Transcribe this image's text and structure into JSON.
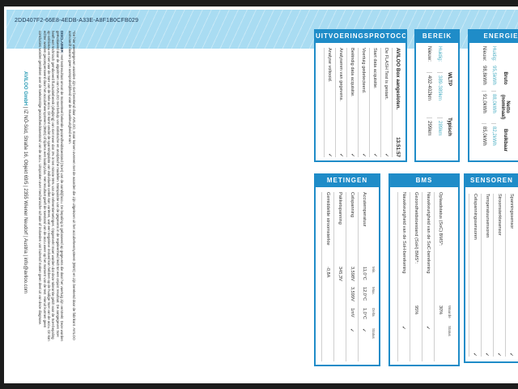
{
  "document_id": "2DD407F2-66E8-4EDB-A33E-A8F1B0CFB029",
  "footnote": "*De hier weergegeven waarden zijn niet berekend door AVILOO, maar komen overeen met de waarden die zijn uitgelezen uit het accubeheersysteem (BMS) en zijn berekend door de fabrikant. AVILOO aanvaardt daarom geen aansprakelijkheid voor de nauwkeurigheid ervan.",
  "disclaimer_label": "DISCLAIMER:",
  "disclaimer": "Het testresultaat omvat de momenteel bekende gezondheidstoestand (SoH) van de aandrijfaccu. De bepaling is gebaseerd op gegevens die door het voertuig zijn verstrekt. Deze worden geëvalueerd door de algoritmen van AVILOO met behulp van statistische en analytische modellen. Manipulatie van de gegevens in de regeleenheid leidt tot een onjuist resultaat. De aangegeven SoH heeft een technisch geïndiceerd fluctuatiebereik (afwijking) van niet meer dan 3% in ten minste 95% van de referentiemetingen. Opgemerkt moet worden dat deze tolerantie geldt voor de SoH-bepaling op celniveau en niet voor de SoH van de hele accu. Dit komt omdat de spanningsdata van individuele cellen kan variëren, wat een negatieve invloed kan hebben op de huidige SoH van de accu. Dit kan echter worden gecompenseerd door het accubeheersysteem (BMS) of tijdens een laadcyclus. Het resultaat geeft de toestand van de accu weer op het moment van de test. Hieruit kunnen geen conclusies worden getrokken over de toekomstige gezondheidstoestand van de accu. Uitspraken over mechanische schade of invloeden van buitenaf maken geen deel uit van deze diagnose.",
  "footer": {
    "company": "AVILOO GmbH",
    "address": " | IZ NÖ-Süd, Straße 16, Objekt 69/5 | 2355 Wiener Neudorf | Austria | info@aviloo.com"
  },
  "colors": {
    "accent": "#1f8cc8",
    "band": "#a9dcf2",
    "teal": "#4fb0c4"
  },
  "protocol": {
    "title": "UITVOERINGSPROTOCOL",
    "first": {
      "text": "AVILOO Box aangesloten.",
      "time": "13:51:57"
    },
    "rows": [
      "De FLASH Test is gestart.",
      "Start data acquisitie.",
      "Voertuig gedetecteerd.",
      "Beëindig data acquisitie.",
      "Analyseren van gegevens.",
      "Analyse voltooid."
    ]
  },
  "bereik": {
    "title": "BEREIK",
    "headers": [
      "WLTP",
      "Typisch"
    ],
    "rows": [
      {
        "label": "Huidig:",
        "values": [
          "389-389km",
          "289km"
        ]
      },
      {
        "label": "Nieuw:",
        "values": [
          "402-402km",
          "299km"
        ]
      }
    ]
  },
  "energie": {
    "title": "ENERGIE",
    "headers": [
      "Bruto",
      "Netto (nominaal)",
      "Bruikbaar"
    ],
    "rows": [
      {
        "label": "Huidig:",
        "values": [
          "95,5kWh",
          "88,0kWh",
          "82,2kWh"
        ]
      },
      {
        "label": "Nieuw:",
        "values": [
          "98,8kWh",
          "91,0kWh",
          "85,0kWh"
        ]
      }
    ]
  },
  "metingen": {
    "title": "METINGEN",
    "headers": [
      "Min.",
      "Max.",
      "Delta",
      "Status"
    ],
    "rows": [
      {
        "label": "Accutemperatuur",
        "min": "11,0°C",
        "max": "12,0°C",
        "delta": "1,0°C",
        "status": "✓"
      },
      {
        "label": "Celspanning",
        "min": "3,598V",
        "max": "3,599V",
        "delta": "1mV",
        "status": "✓"
      },
      {
        "label": "Pakketspanning",
        "min": "345,3V",
        "max": "",
        "delta": "",
        "status": ""
      },
      {
        "label": "Gemiddelde stroomsterkte",
        "min": "-0,8A",
        "max": "",
        "delta": "",
        "status": ""
      }
    ]
  },
  "bms": {
    "title": "BMS",
    "headers": [
      "Waarde",
      "Status"
    ],
    "rows": [
      {
        "label": "Oplaadstatus (SoC) BMS*:",
        "value": "30%",
        "status": ""
      },
      {
        "label": "Nauwkeurigheid van de SoC-berekening",
        "value": "",
        "status": "✓"
      },
      {
        "label": "Gezondheidstoestand (SoH) BMS*:",
        "value": "95%",
        "status": ""
      },
      {
        "label": "Nauwkeurigheid van de SoH-berekening",
        "value": "",
        "status": "✓"
      }
    ]
  },
  "sensoren": {
    "title": "SENSOREN",
    "rows": [
      {
        "label": "Spanningssensor",
        "status": "✓"
      },
      {
        "label": "Stroomsterktesensor",
        "status": "✓"
      },
      {
        "label": "Temperatuursensoren",
        "status": "✓"
      },
      {
        "label": "Celspanningssensoren",
        "status": "✓"
      }
    ]
  }
}
